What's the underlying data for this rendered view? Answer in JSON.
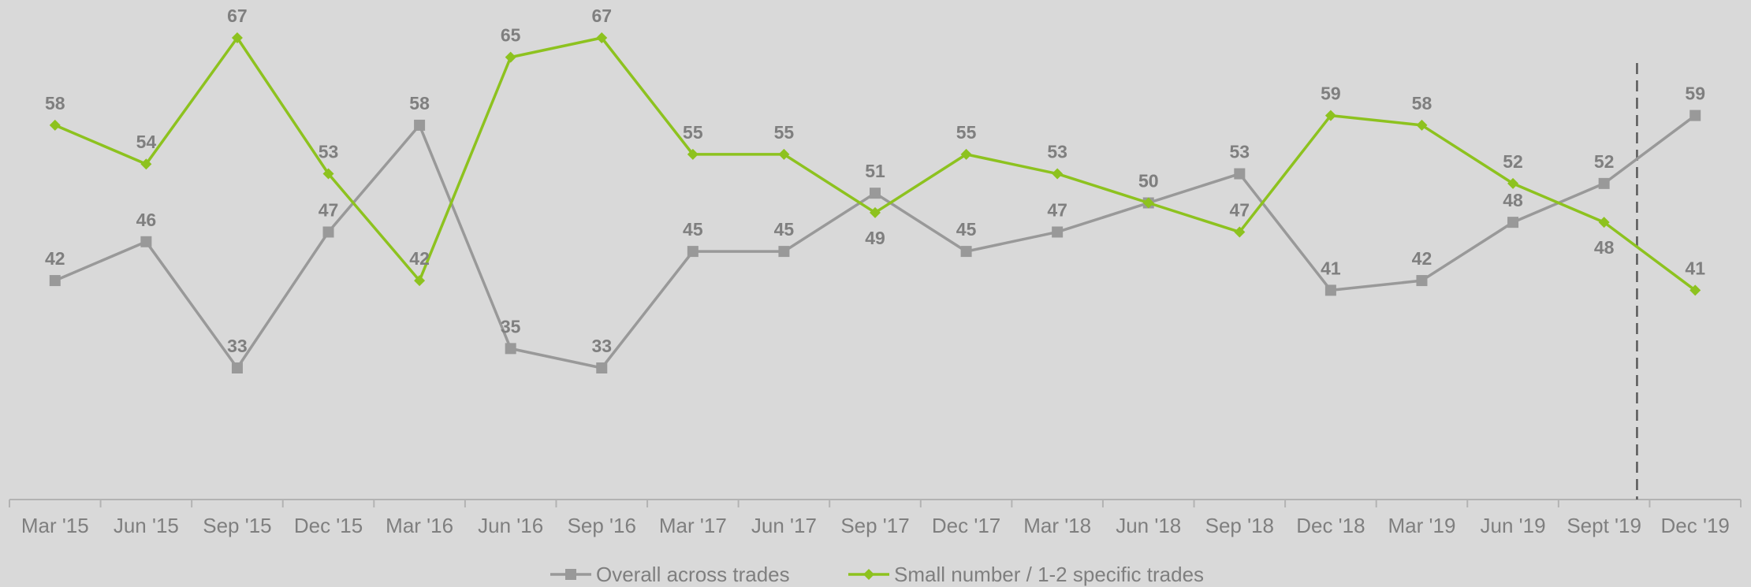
{
  "chart_data": {
    "type": "line",
    "categories": [
      "Mar '15",
      "Jun '15",
      "Sep '15",
      "Dec '15",
      "Mar '16",
      "Jun '16",
      "Sep '16",
      "Mar '17",
      "Jun '17",
      "Sep '17",
      "Dec '17",
      "Mar '18",
      "Jun '18",
      "Sep '18",
      "Dec '18",
      "Mar '19",
      "Jun '19",
      "Sept '19",
      "Dec '19"
    ],
    "series": [
      {
        "name": "Overall across trades",
        "color": "#999999",
        "marker": "square",
        "values": [
          42,
          46,
          33,
          47,
          58,
          35,
          33,
          45,
          45,
          51,
          45,
          47,
          50,
          53,
          41,
          42,
          48,
          52,
          59
        ],
        "label_position": [
          "above",
          "above",
          "above",
          "above",
          "above",
          "above",
          "above",
          "above",
          "above",
          "above",
          "above",
          "above",
          "above",
          "above",
          "above",
          "above",
          "above",
          "above",
          "above"
        ]
      },
      {
        "name": "Small number / 1-2 specific trades",
        "color": "#8dc21f",
        "marker": "diamond",
        "values": [
          58,
          54,
          67,
          53,
          42,
          65,
          67,
          55,
          55,
          49,
          55,
          53,
          50,
          47,
          59,
          58,
          52,
          48,
          41
        ],
        "label_position": [
          "above",
          "above",
          "above",
          "above",
          "above",
          "above",
          "above",
          "above",
          "above",
          "below",
          "above",
          "above",
          "above",
          "above",
          "above",
          "above",
          "above",
          "below",
          "above"
        ]
      }
    ],
    "ylim": [
      20,
      70
    ],
    "grid": false,
    "legend_position": "bottom",
    "reference_line": {
      "style": "dashed",
      "between": [
        "Sept '19",
        "Dec '19"
      ]
    }
  }
}
